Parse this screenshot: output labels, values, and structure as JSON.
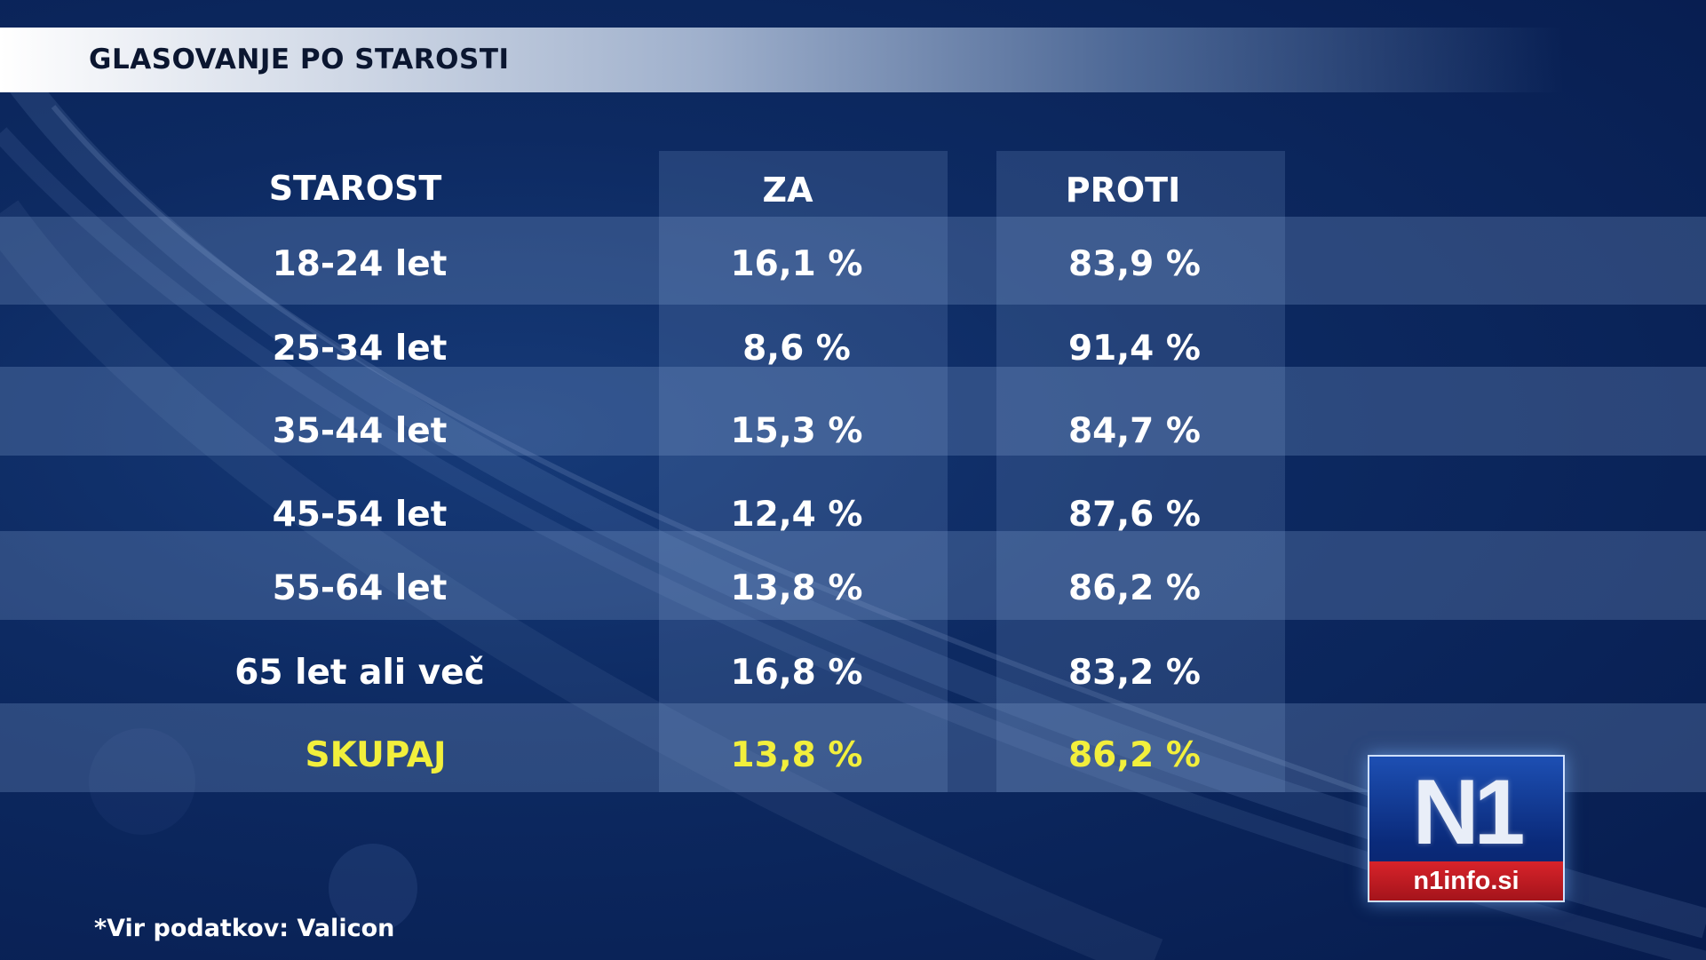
{
  "title": "GLASOVANJE PO STAROSTI",
  "source": "*Vir podatkov: Valicon",
  "logo": {
    "mark": "N1",
    "site": "n1info.si"
  },
  "chart_data": {
    "type": "table",
    "columns": [
      "STAROST",
      "ZA",
      "PROTI"
    ],
    "rows": [
      {
        "label": "18-24 let",
        "za": "16,1 %",
        "proti": "83,9 %"
      },
      {
        "label": "25-34 let",
        "za": "8,6 %",
        "proti": "91,4 %"
      },
      {
        "label": "35-44 let",
        "za": "15,3 %",
        "proti": "84,7 %"
      },
      {
        "label": "45-54 let",
        "za": "12,4 %",
        "proti": "87,6 %"
      },
      {
        "label": "55-64 let",
        "za": "13,8 %",
        "proti": "86,2 %"
      },
      {
        "label": "65 let ali več",
        "za": "16,8 %",
        "proti": "83,2 %"
      }
    ],
    "total": {
      "label": "SKUPAJ",
      "za": "13,8 %",
      "proti": "86,2 %"
    },
    "colors": {
      "total_text": "#f2ef3c",
      "text": "#ffffff",
      "title_text": "#0b1630"
    }
  }
}
